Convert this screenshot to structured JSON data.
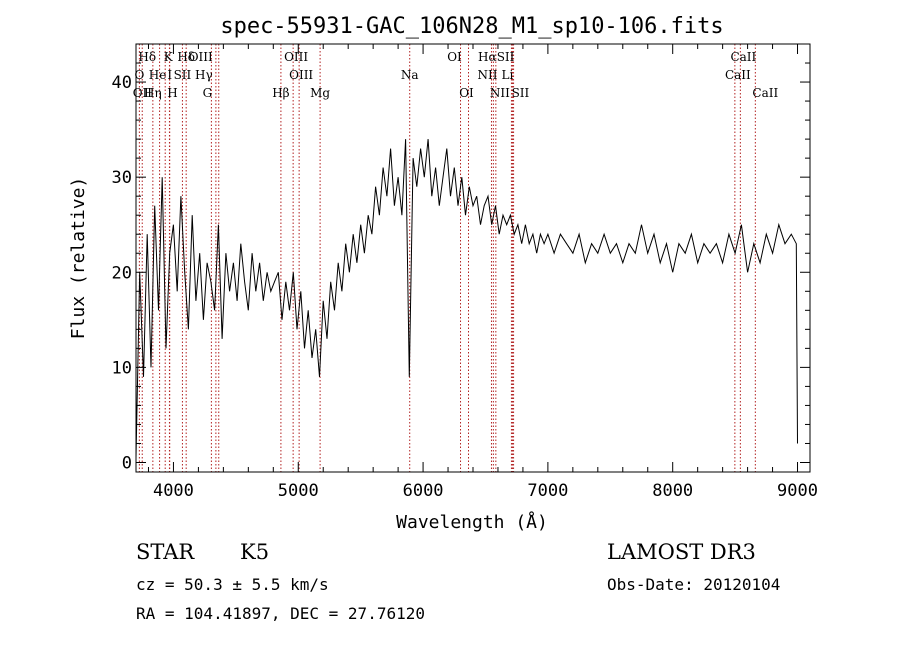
{
  "chart_data": {
    "type": "line",
    "title": "spec-55931-GAC_106N28_M1_sp10-106.fits",
    "xlabel": "Wavelength (Å)",
    "ylabel": "Flux (relative)",
    "xlim": [
      3700,
      9100
    ],
    "ylim": [
      -1,
      44
    ],
    "xticks": [
      4000,
      5000,
      6000,
      7000,
      8000,
      9000
    ],
    "yticks": [
      0,
      10,
      20,
      30,
      40
    ],
    "series": [
      {
        "name": "flux",
        "x": [
          3700,
          3730,
          3760,
          3790,
          3820,
          3850,
          3880,
          3910,
          3940,
          3970,
          4000,
          4030,
          4060,
          4090,
          4120,
          4150,
          4180,
          4210,
          4240,
          4270,
          4300,
          4330,
          4360,
          4390,
          4420,
          4450,
          4480,
          4510,
          4540,
          4570,
          4600,
          4630,
          4660,
          4690,
          4720,
          4750,
          4780,
          4810,
          4840,
          4870,
          4900,
          4930,
          4960,
          4990,
          5020,
          5050,
          5080,
          5110,
          5140,
          5170,
          5200,
          5230,
          5260,
          5290,
          5320,
          5350,
          5380,
          5410,
          5440,
          5470,
          5500,
          5530,
          5560,
          5590,
          5620,
          5650,
          5680,
          5710,
          5740,
          5770,
          5800,
          5830,
          5860,
          5890,
          5920,
          5950,
          5980,
          6010,
          6040,
          6070,
          6100,
          6130,
          6160,
          6190,
          6220,
          6250,
          6280,
          6310,
          6340,
          6370,
          6400,
          6430,
          6460,
          6490,
          6520,
          6550,
          6580,
          6610,
          6640,
          6670,
          6700,
          6730,
          6760,
          6790,
          6820,
          6850,
          6880,
          6910,
          6940,
          6970,
          7000,
          7050,
          7100,
          7150,
          7200,
          7250,
          7300,
          7350,
          7400,
          7450,
          7500,
          7550,
          7600,
          7650,
          7700,
          7750,
          7800,
          7850,
          7900,
          7950,
          8000,
          8050,
          8100,
          8150,
          8200,
          8250,
          8300,
          8350,
          8400,
          8450,
          8500,
          8550,
          8600,
          8650,
          8700,
          8750,
          8800,
          8850,
          8900,
          8950,
          8990,
          9000
        ],
        "y": [
          0.5,
          20,
          9,
          24,
          10,
          27,
          16,
          30,
          12,
          22,
          25,
          18,
          28,
          20,
          14,
          26,
          17,
          22,
          15,
          21,
          19,
          16,
          25,
          13,
          22,
          18,
          21,
          17,
          23,
          19,
          16,
          22,
          18,
          21,
          17,
          20,
          18,
          19,
          20,
          15,
          19,
          16,
          20,
          14,
          18,
          12,
          16,
          11,
          14,
          9,
          17,
          13,
          19,
          16,
          21,
          18,
          23,
          20,
          24,
          21,
          25,
          22,
          26,
          24,
          29,
          26,
          31,
          28,
          33,
          27,
          30,
          26,
          34,
          9,
          32,
          29,
          33,
          30,
          34,
          28,
          31,
          27,
          30,
          33,
          28,
          31,
          27,
          30,
          26,
          29,
          27,
          28,
          25,
          27,
          28,
          25,
          27,
          24,
          26,
          25,
          26,
          24,
          25,
          23,
          25,
          23,
          24,
          22,
          24,
          23,
          24,
          22,
          24,
          23,
          22,
          24,
          21,
          23,
          22,
          24,
          22,
          23,
          21,
          23,
          22,
          25,
          22,
          24,
          21,
          23,
          20,
          23,
          22,
          24,
          21,
          23,
          22,
          23,
          21,
          24,
          22,
          25,
          20,
          23,
          21,
          24,
          22,
          25,
          23,
          24,
          23,
          2
        ]
      }
    ],
    "line_markers": [
      {
        "label": "Hδ",
        "wave": 3750,
        "row": 0,
        "dx": 5
      },
      {
        "label": "K",
        "wave": 3934,
        "row": 0,
        "dx": 3
      },
      {
        "label": "Hδ",
        "wave": 4102,
        "row": 0,
        "dx": 0
      },
      {
        "label": "OIII",
        "wave": 4363,
        "row": 0,
        "dx": -18
      },
      {
        "label": "OIII",
        "wave": 5007,
        "row": 0,
        "dx": -3
      },
      {
        "label": "OI",
        "wave": 6300,
        "row": 0,
        "dx": -6
      },
      {
        "label": "Hα",
        "wave": 6563,
        "row": 0,
        "dx": -6
      },
      {
        "label": "SII",
        "wave": 6725,
        "row": 0,
        "dx": -8
      },
      {
        "label": "CaII",
        "wave": 8542,
        "row": 0,
        "dx": 3
      },
      {
        "label": "O",
        "wave": 3727,
        "row": 1,
        "dx": 0
      },
      {
        "label": "He",
        "wave": 3889,
        "row": 1,
        "dx": -2
      },
      {
        "label": "I",
        "wave": 3970,
        "row": 1,
        "dx": 0
      },
      {
        "label": "SII",
        "wave": 4072,
        "row": 1,
        "dx": 0
      },
      {
        "label": "Hγ",
        "wave": 4340,
        "row": 1,
        "dx": -12
      },
      {
        "label": "OIII",
        "wave": 4959,
        "row": 1,
        "dx": 8
      },
      {
        "label": "Na",
        "wave": 5893,
        "row": 1,
        "dx": 0
      },
      {
        "label": "NII",
        "wave": 6548,
        "row": 1,
        "dx": -4
      },
      {
        "label": "Li",
        "wave": 6708,
        "row": 1,
        "dx": -4
      },
      {
        "label": "CaII",
        "wave": 8498,
        "row": 1,
        "dx": 3
      },
      {
        "label": "OII",
        "wave": 3727,
        "row": 2,
        "dx": 3
      },
      {
        "label": "Hη",
        "wave": 3835,
        "row": 2,
        "dx": 0
      },
      {
        "label": "H",
        "wave": 3968,
        "row": 2,
        "dx": 3
      },
      {
        "label": "G",
        "wave": 4304,
        "row": 2,
        "dx": -4
      },
      {
        "label": "Hβ",
        "wave": 4861,
        "row": 2,
        "dx": 0
      },
      {
        "label": "Mg",
        "wave": 5175,
        "row": 2,
        "dx": 0
      },
      {
        "label": "OI",
        "wave": 6364,
        "row": 2,
        "dx": -2
      },
      {
        "label": "NII",
        "wave": 6583,
        "row": 2,
        "dx": 4
      },
      {
        "label": "SII",
        "wave": 6716,
        "row": 2,
        "dx": 8
      },
      {
        "label": "CaII",
        "wave": 8662,
        "row": 2,
        "dx": 10
      }
    ],
    "marker_lines": [
      3727,
      3750,
      3835,
      3889,
      3934,
      3968,
      3970,
      4072,
      4102,
      4304,
      4340,
      4363,
      4861,
      4959,
      5007,
      5175,
      5893,
      6300,
      6364,
      6548,
      6563,
      6583,
      6708,
      6716,
      6725,
      8498,
      8542,
      8662
    ],
    "colors": {
      "spectrum": "#000000",
      "marker_line": "#b22222",
      "axes": "#000000"
    }
  },
  "info": {
    "object_class": "STAR",
    "subclass": "K5",
    "survey": "LAMOST DR3",
    "redshift": "cz = 50.3 ± 5.5 km/s",
    "obs_date": "Obs-Date: 20120104",
    "coords": "RA = 104.41897, DEC =  27.76120"
  }
}
